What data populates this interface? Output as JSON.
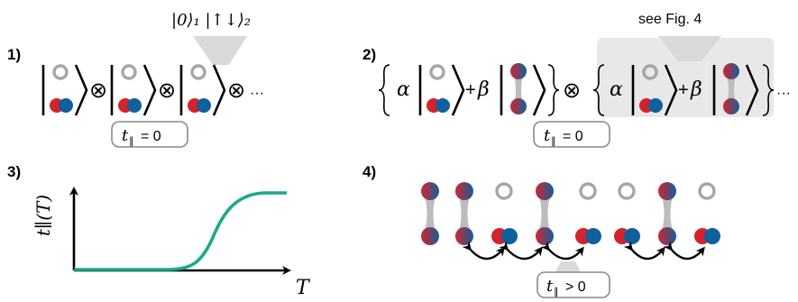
{
  "panel1": {
    "label": "1)",
    "annotation": "|0⟩₁ |↑↓⟩₂",
    "tensor": "⊗",
    "ellipsis": "···",
    "box": {
      "lhs": "t",
      "sub": "∥",
      "rhs": "= 0"
    }
  },
  "panel2": {
    "label": "2)",
    "callout": "see Fig. 4",
    "alpha": "α",
    "beta": "β",
    "plus": "+",
    "tensor": "⊗",
    "ellipsis": "···",
    "box": {
      "lhs": "t",
      "sub": "∥",
      "rhs": "= 0"
    }
  },
  "panel3": {
    "label": "3)",
    "ylabel": "t∥(T)",
    "xlabel": "T"
  },
  "panel4": {
    "label": "4)",
    "box": {
      "lhs": "t",
      "sub": "∥",
      "rhs": "> 0"
    }
  },
  "colors": {
    "spin_red": "#d4232b",
    "spin_blue": "#10609e",
    "curve": "#1aa98d",
    "empty": "#a6a6a6",
    "bond": "#bdbdbd"
  }
}
